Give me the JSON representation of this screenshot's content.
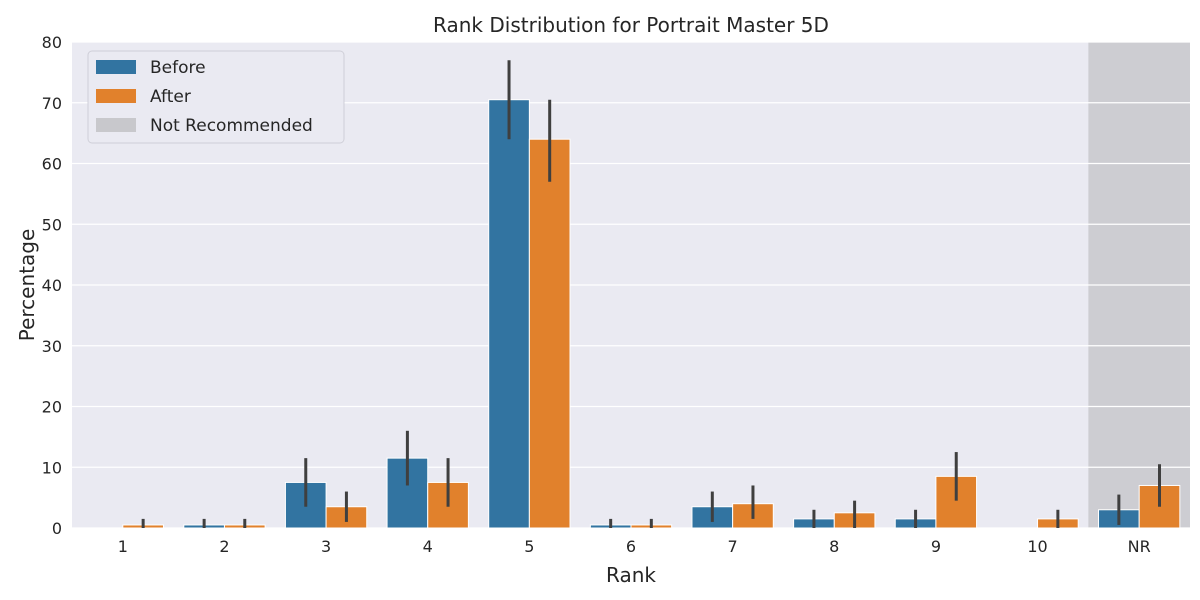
{
  "chart_data": {
    "type": "bar",
    "title": "Rank Distribution for Portrait Master 5D",
    "xlabel": "Rank",
    "ylabel": "Percentage",
    "ylim": [
      0,
      80
    ],
    "yticks": [
      0,
      10,
      20,
      30,
      40,
      50,
      60,
      70,
      80
    ],
    "categories": [
      "1",
      "2",
      "3",
      "4",
      "5",
      "6",
      "7",
      "8",
      "9",
      "10",
      "NR"
    ],
    "series": [
      {
        "name": "Before",
        "color": "#3274a1",
        "values": [
          0,
          0.5,
          7.5,
          11.5,
          70.5,
          0.5,
          3.5,
          1.5,
          1.5,
          0,
          3
        ],
        "ci_low": [
          0,
          0,
          3.5,
          7,
          64,
          0,
          1,
          0,
          0,
          0,
          0.5
        ],
        "ci_high": [
          0,
          1.5,
          11.5,
          16,
          77,
          1.5,
          6,
          3,
          3,
          0,
          5.5
        ]
      },
      {
        "name": "After",
        "color": "#e1812c",
        "values": [
          0.5,
          0.5,
          3.5,
          7.5,
          64,
          0.5,
          4,
          2.5,
          8.5,
          1.5,
          7
        ],
        "ci_low": [
          0,
          0,
          1,
          3.5,
          57,
          0,
          1.5,
          0,
          4.5,
          0,
          3.5
        ],
        "ci_high": [
          1.5,
          1.5,
          6,
          11.5,
          70.5,
          1.5,
          7,
          4.5,
          12.5,
          3,
          10.5
        ]
      }
    ],
    "highlight": {
      "label": "Not Recommended",
      "category": "NR",
      "color": "#c8c8cc"
    },
    "legend": {
      "position": "top-left",
      "entries": [
        "Before",
        "After",
        "Not Recommended"
      ]
    },
    "background": "#eaeaf2",
    "grid": true
  }
}
